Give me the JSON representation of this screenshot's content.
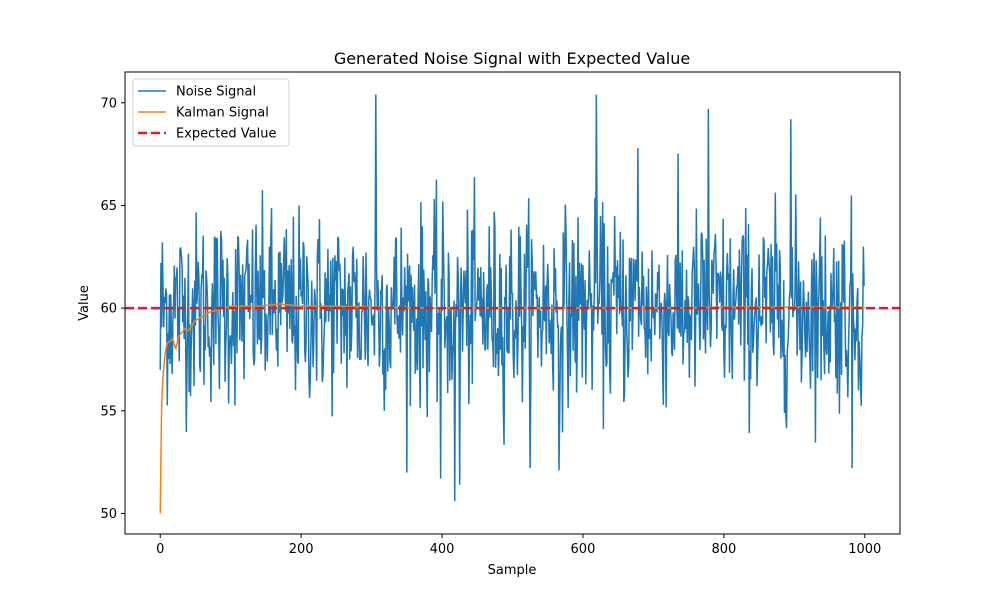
{
  "chart_data": {
    "type": "line",
    "title": "Generated Noise Signal with Expected Value",
    "xlabel": "Sample",
    "ylabel": "Value",
    "xlim": [
      -50,
      1050
    ],
    "ylim": [
      49.0,
      71.5
    ],
    "xticks": [
      0,
      200,
      400,
      600,
      800,
      1000
    ],
    "yticks": [
      50,
      55,
      60,
      65,
      70
    ],
    "legend_position": "top-left",
    "grid": false,
    "n_points": 1000,
    "expected_value": 60,
    "series": [
      {
        "name": "Noise Signal",
        "color": "#1f77b4",
        "style": "solid",
        "description": "Gaussian noise around 60 (std ~2.3), range ~50.6 to ~70.4",
        "peaks": [
          {
            "x": 306,
            "y": 70.4
          },
          {
            "x": 619,
            "y": 70.4
          },
          {
            "x": 778,
            "y": 69.7
          },
          {
            "x": 895,
            "y": 69.2
          },
          {
            "x": 678,
            "y": 67.8
          }
        ],
        "troughs": [
          {
            "x": 0,
            "y": 57.0
          },
          {
            "x": 418,
            "y": 50.6
          },
          {
            "x": 425,
            "y": 51.4
          },
          {
            "x": 398,
            "y": 51.7
          },
          {
            "x": 566,
            "y": 52.1
          },
          {
            "x": 982,
            "y": 52.2
          }
        ]
      },
      {
        "name": "Kalman Signal",
        "color": "#ff7f0e",
        "style": "solid",
        "x": [
          0,
          2,
          4,
          6,
          8,
          10,
          14,
          18,
          22,
          26,
          30,
          35,
          40,
          50,
          60,
          70,
          80,
          100,
          120,
          140,
          170,
          200,
          250,
          300,
          400,
          500,
          600,
          700,
          800,
          900,
          1000
        ],
        "values": [
          50.0,
          55.3,
          56.7,
          57.5,
          58.0,
          58.3,
          58.4,
          58.5,
          58.0,
          58.6,
          58.8,
          59.0,
          58.9,
          59.4,
          59.6,
          59.8,
          59.9,
          60.1,
          60.1,
          60.1,
          60.2,
          60.1,
          60.1,
          60.05,
          60.0,
          60.0,
          60.0,
          60.0,
          60.05,
          60.05,
          60.05
        ]
      },
      {
        "name": "Expected Value",
        "color": "#e41a1c",
        "style": "dashed",
        "value": 60
      }
    ]
  }
}
